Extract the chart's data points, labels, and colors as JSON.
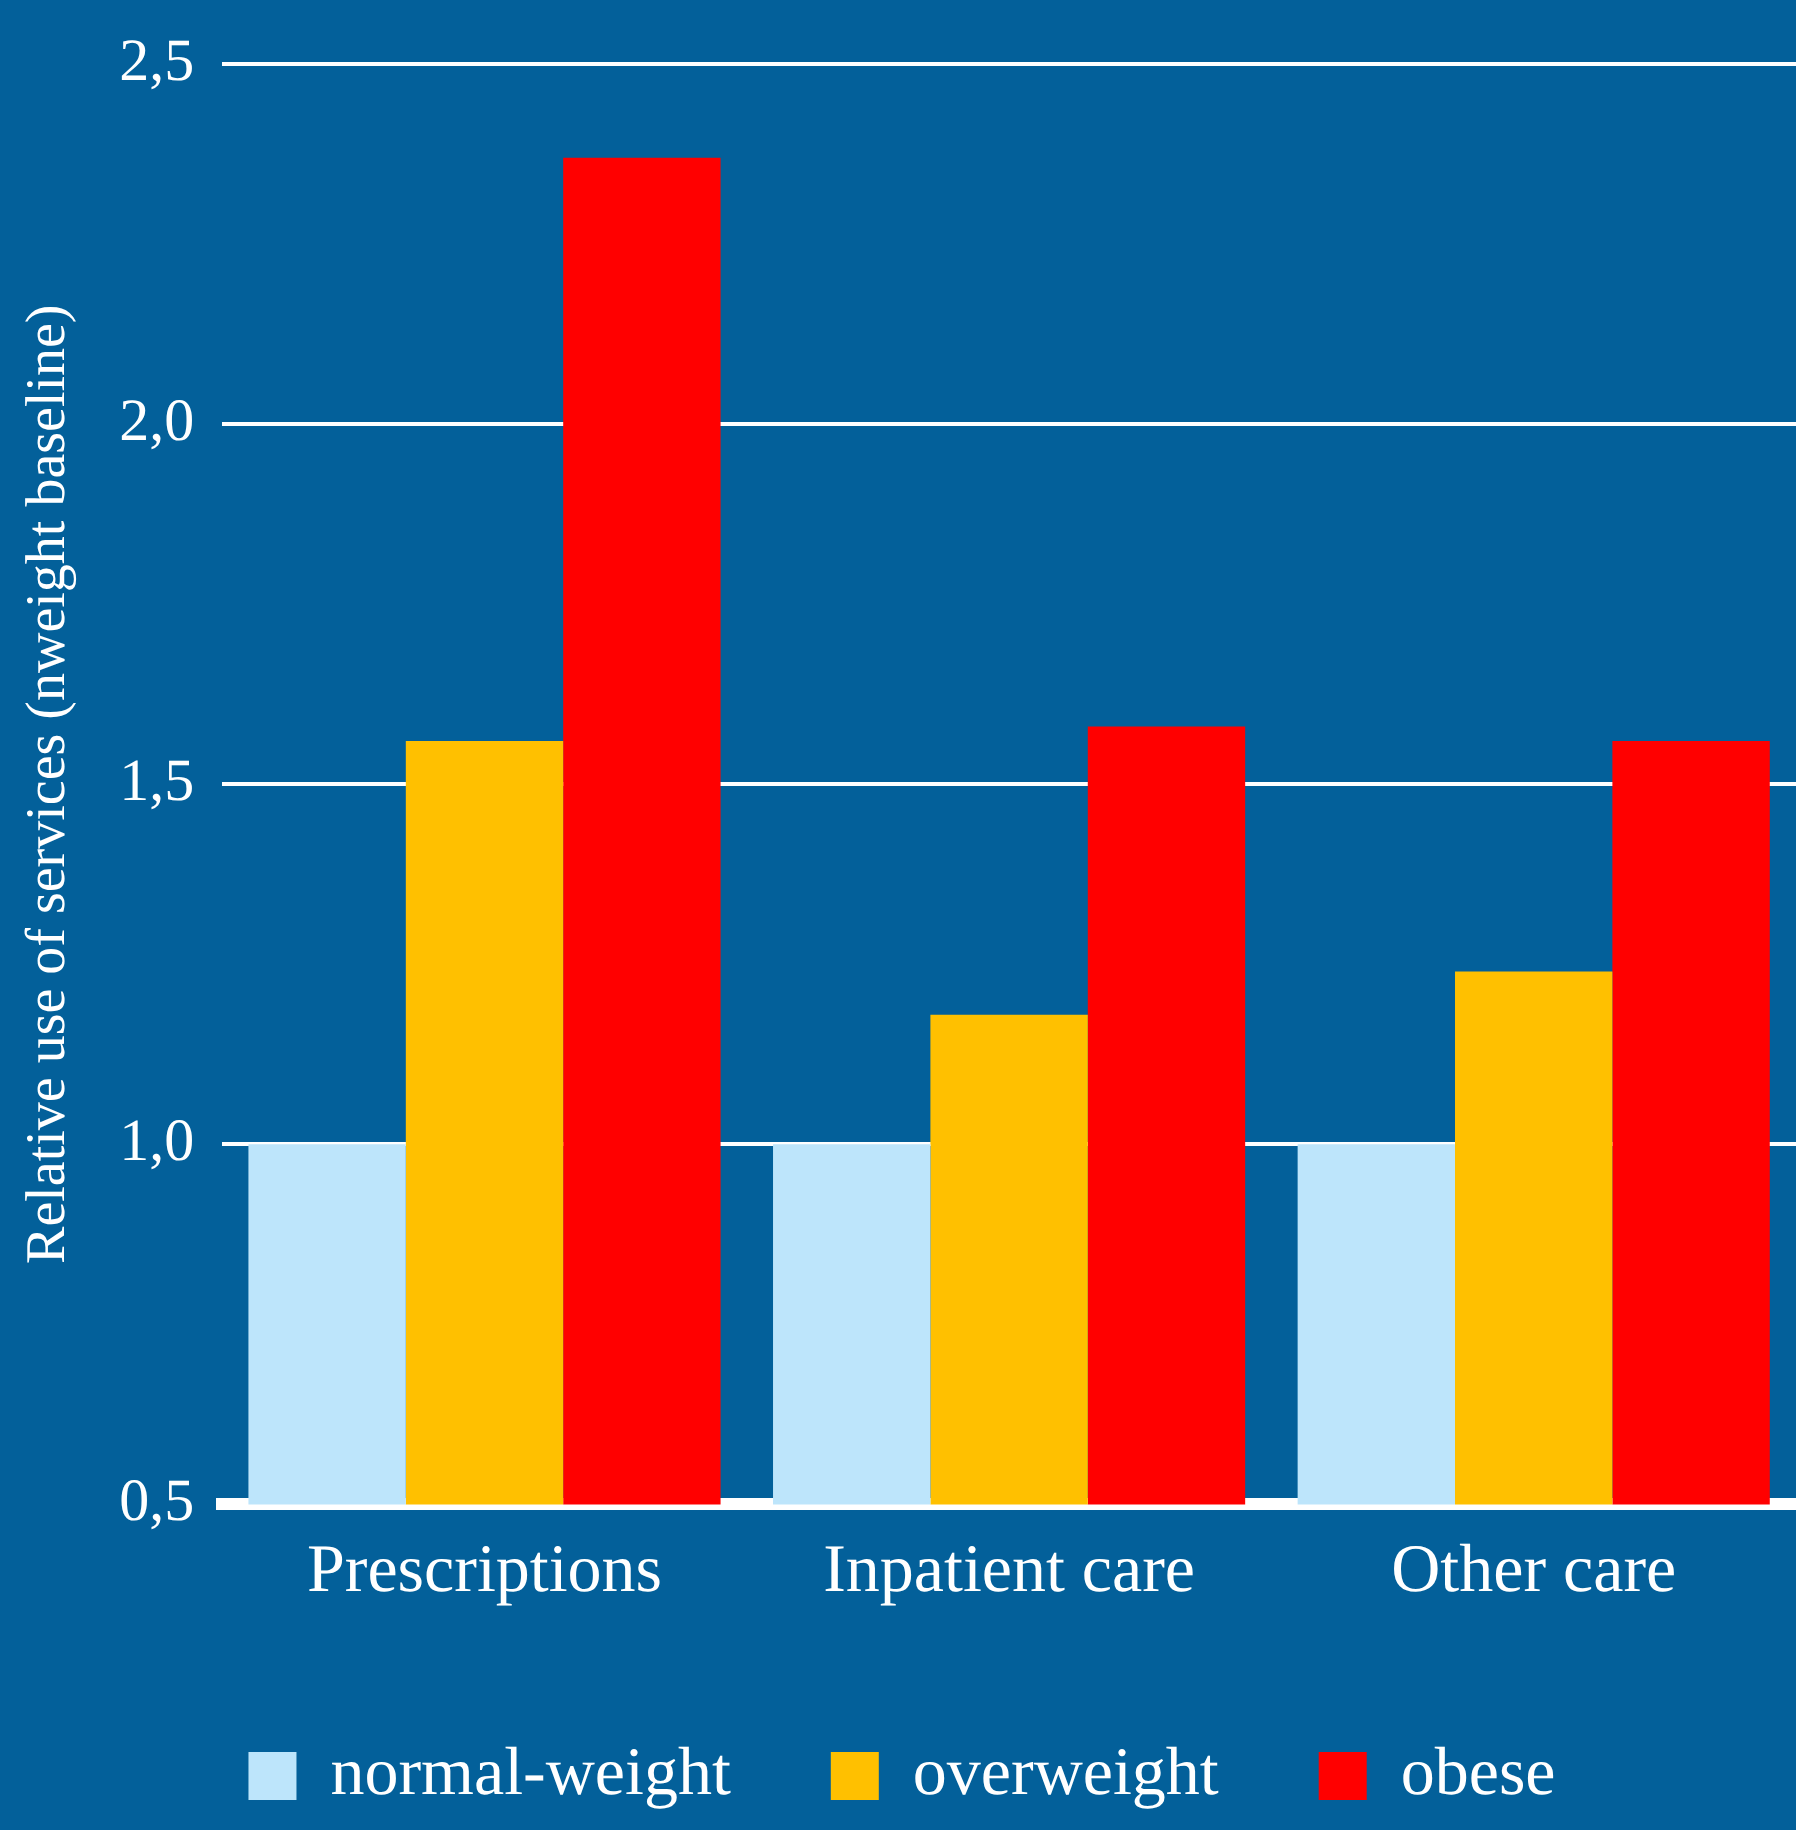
{
  "chart_data": {
    "type": "bar",
    "ylabel": "Relative use of services (nweight baseline)",
    "categories": [
      "Prescriptions",
      "Inpatient care",
      "Other care"
    ],
    "series": [
      {
        "name": "normal-weight",
        "color": "#bde5fb",
        "values": [
          1.0,
          1.0,
          1.0
        ]
      },
      {
        "name": "overweight",
        "color": "#ffc000",
        "values": [
          1.56,
          1.18,
          1.24
        ]
      },
      {
        "name": "obese",
        "color": "#ff0000",
        "values": [
          2.37,
          1.58,
          1.56
        ]
      }
    ],
    "ylim": [
      0.5,
      2.5
    ],
    "yticks": [
      {
        "value": 0.5,
        "label": "0,5"
      },
      {
        "value": 1,
        "label": "1,0"
      },
      {
        "value": 1.5,
        "label": "1,5"
      },
      {
        "value": 2,
        "label": "2,0"
      },
      {
        "value": 2.5,
        "label": "2,5"
      }
    ],
    "grid": "y",
    "legend": "bottom"
  }
}
